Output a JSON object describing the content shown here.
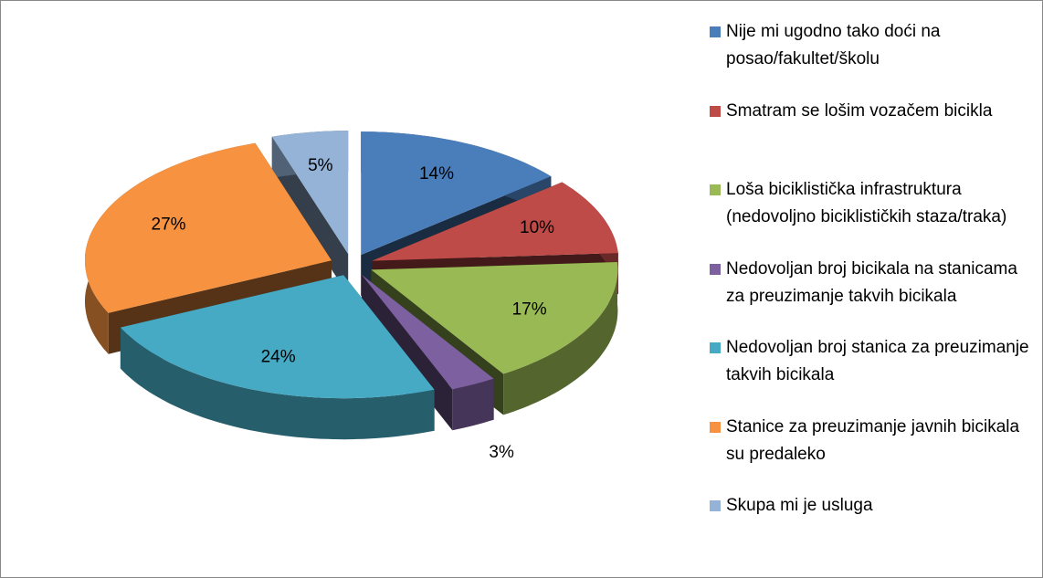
{
  "chart_data": {
    "type": "pie",
    "categories": [
      "Nije mi ugodno tako doći na posao/fakultet/školu",
      "Smatram se lošim vozačem bicikla",
      "Loša biciklistička infrastruktura (nedovoljno biciklističkih staza/traka)",
      "Nedovoljan broj bicikala na stanicama za preuzimanje takvih bicikala",
      "Nedovoljan broj stanica za preuzimanje takvih bicikala",
      "Stanice za preuzimanje javnih bicikala su predaleko",
      "Skupa mi je usluga"
    ],
    "values": [
      14,
      10,
      17,
      3,
      24,
      27,
      5
    ],
    "value_labels": [
      "14%",
      "10%",
      "17%",
      "3%",
      "24%",
      "27%",
      "5%"
    ],
    "colors": [
      "#4a7ebb",
      "#be4b48",
      "#98b954",
      "#7d60a0",
      "#46aac5",
      "#f69240",
      "#94b3d6"
    ],
    "legend": "right"
  }
}
